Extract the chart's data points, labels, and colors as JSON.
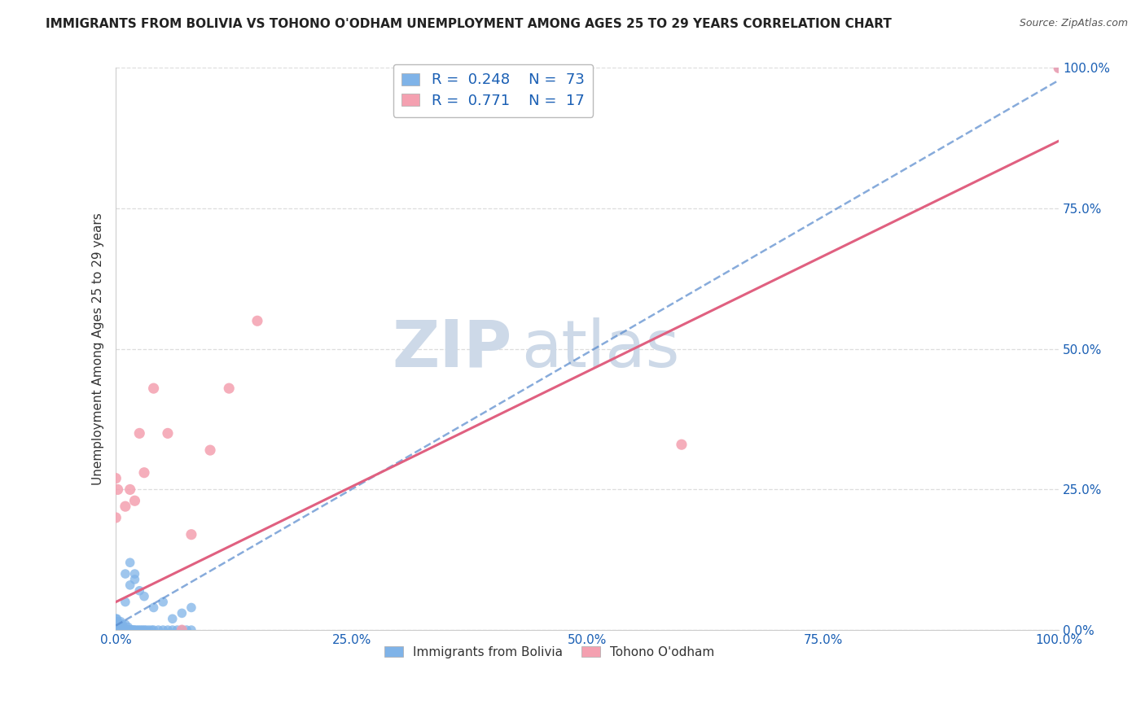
{
  "title": "IMMIGRANTS FROM BOLIVIA VS TOHONO O'ODHAM UNEMPLOYMENT AMONG AGES 25 TO 29 YEARS CORRELATION CHART",
  "source": "Source: ZipAtlas.com",
  "ylabel": "Unemployment Among Ages 25 to 29 years",
  "xlabel": "",
  "xlim": [
    0,
    1
  ],
  "ylim": [
    0,
    1
  ],
  "xticks": [
    0.0,
    0.25,
    0.5,
    0.75,
    1.0
  ],
  "yticks": [
    0.0,
    0.25,
    0.5,
    0.75,
    1.0
  ],
  "xticklabels": [
    "0.0%",
    "25.0%",
    "50.0%",
    "75.0%",
    "100.0%"
  ],
  "yticklabels": [
    "0.0%",
    "25.0%",
    "50.0%",
    "75.0%",
    "100.0%"
  ],
  "series1_label": "Immigrants from Bolivia",
  "series1_R": "0.248",
  "series1_N": "73",
  "series1_color": "#7fb3e8",
  "series2_label": "Tohono O'odham",
  "series2_R": "0.771",
  "series2_N": "17",
  "series2_color": "#f4a0b0",
  "trendline1_slope": 0.97,
  "trendline1_intercept": 0.008,
  "trendline1_color": "#5588cc",
  "trendline2_slope": 0.82,
  "trendline2_intercept": 0.05,
  "trendline2_color": "#e06080",
  "watermark_zip": "ZIP",
  "watermark_atlas": "atlas",
  "watermark_color": "#cdd9e8",
  "legend_text_color": "#1a5fb4",
  "grid_color": "#dddddd",
  "title_fontsize": 11,
  "axis_label_fontsize": 11,
  "tick_fontsize": 11,
  "legend_fontsize": 13,
  "source_fontsize": 9,
  "scatter1_size": 70,
  "scatter2_size": 90
}
